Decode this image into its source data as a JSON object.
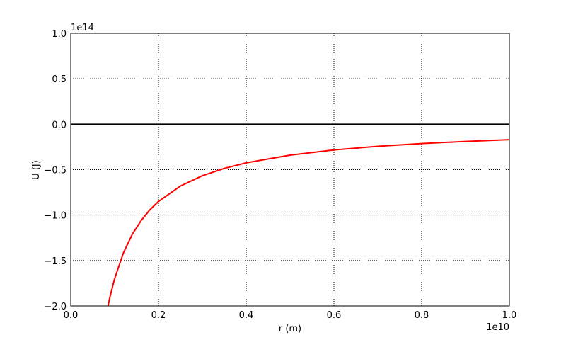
{
  "chart_data": {
    "type": "line",
    "xlabel": "r (m)",
    "ylabel": "U (J)",
    "x_offset_label": "1e10",
    "y_offset_label": "1e14",
    "x": [
      0.085,
      0.09,
      0.1,
      0.12,
      0.14,
      0.16,
      0.18,
      0.2,
      0.25,
      0.3,
      0.35,
      0.4,
      0.5,
      0.6,
      0.7,
      0.8,
      0.9,
      1.0
    ],
    "series": [
      {
        "color": "#ff0000",
        "values": [
          -2.0,
          -1.889,
          -1.7,
          -1.417,
          -1.214,
          -1.0625,
          -0.944,
          -0.85,
          -0.68,
          -0.567,
          -0.486,
          -0.425,
          -0.34,
          -0.283,
          -0.243,
          -0.2125,
          -0.189,
          -0.17
        ]
      }
    ],
    "hline": {
      "y": 0,
      "color": "#000000"
    },
    "xlim": [
      0,
      1
    ],
    "ylim": [
      -2,
      1
    ],
    "xticks": [
      {
        "value": 0,
        "label": "0.0"
      },
      0.2,
      0.4,
      0.6,
      0.8,
      {
        "value": 1,
        "label": "1.0"
      }
    ],
    "yticks": [
      {
        "value": -2,
        "label": "−2.0"
      },
      {
        "value": -1.5,
        "label": "−1.5"
      },
      {
        "value": -1,
        "label": "−1.0"
      },
      {
        "value": -0.5,
        "label": "−0.5"
      },
      {
        "value": 0,
        "label": "0.0"
      },
      0.5,
      {
        "value": 1,
        "label": "1.0"
      }
    ],
    "grid": true
  }
}
